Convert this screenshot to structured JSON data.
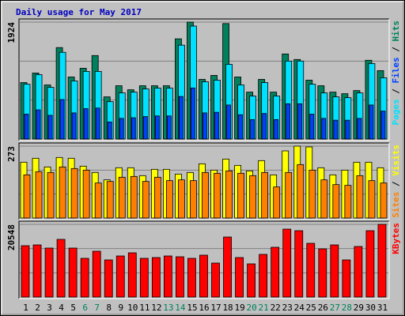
{
  "chart_data": {
    "type": "bar",
    "title": "Daily usage for May 2017",
    "legend_separator": " / ",
    "categories": [
      "1",
      "2",
      "3",
      "4",
      "5",
      "6",
      "7",
      "8",
      "9",
      "10",
      "11",
      "12",
      "13",
      "14",
      "15",
      "16",
      "17",
      "18",
      "19",
      "20",
      "21",
      "22",
      "23",
      "24",
      "25",
      "26",
      "27",
      "28",
      "29",
      "30",
      "31"
    ],
    "category_colors": [
      "#000000",
      "#000000",
      "#000000",
      "#000000",
      "#000000",
      "#00805c",
      "#00805c",
      "#000000",
      "#000000",
      "#000000",
      "#000000",
      "#000000",
      "#00805c",
      "#00805c",
      "#000000",
      "#000000",
      "#000000",
      "#000000",
      "#000000",
      "#00805c",
      "#00805c",
      "#000000",
      "#000000",
      "#000000",
      "#000000",
      "#000000",
      "#00805c",
      "#00805c",
      "#000000",
      "#000000",
      "#000000"
    ],
    "panels": [
      {
        "type": "bar",
        "ylim": [
          0,
          1924
        ],
        "yticks": [
          1924
        ],
        "grid_divisions": 3,
        "series": [
          {
            "name": "Pages",
            "color": "#00e0ff",
            "values": [
              903,
              1060,
              851,
              1427,
              956,
              1113,
              1113,
              615,
              759,
              772,
              825,
              838,
              838,
              1545,
              1859,
              942,
              969,
              1230,
              890,
              707,
              929,
              707,
              1283,
              1283,
              903,
              759,
              694,
              681,
              759,
              1243,
              1008
            ]
          },
          {
            "name": "Files",
            "color": "#0040ff",
            "values": [
              410,
              480,
              390,
              650,
              430,
              500,
              510,
              280,
              340,
              350,
              370,
              380,
              380,
              700,
              840,
              430,
              440,
              560,
              400,
              320,
              420,
              320,
              580,
              580,
              410,
              340,
              310,
              310,
              340,
              560,
              460
            ]
          },
          {
            "name": "Hits",
            "color": "#00805c",
            "values": [
              929,
              1086,
              890,
              1505,
              1021,
              1165,
              1374,
              694,
              877,
              811,
              877,
              877,
              877,
              1649,
              1924,
              982,
              1047,
              1900,
              1021,
              772,
              982,
              772,
              1400,
              1309,
              969,
              877,
              772,
              746,
              798,
              1296,
              1126
            ]
          }
        ]
      },
      {
        "type": "bar",
        "ylim": [
          0,
          273
        ],
        "yticks": [
          273
        ],
        "grid_divisions": 3,
        "series": [
          {
            "name": "Sites",
            "color": "#ff8000",
            "values": [
              164,
              176,
              173,
              194,
              188,
              182,
              133,
              139,
              155,
              158,
              139,
              155,
              142,
              145,
              142,
              173,
              170,
              179,
              170,
              161,
              173,
              118,
              173,
              203,
              182,
              145,
              127,
              124,
              161,
              142,
              133
            ]
          },
          {
            "name": "Visits",
            "color": "#ffff00",
            "values": [
              212,
              227,
              194,
              230,
              227,
              197,
              173,
              145,
              191,
              191,
              161,
              185,
              185,
              167,
              173,
              206,
              182,
              224,
              200,
              179,
              218,
              164,
              255,
              273,
              270,
              191,
              164,
              182,
              212,
              212,
              191
            ]
          }
        ]
      },
      {
        "type": "bar",
        "ylim": [
          0,
          20548
        ],
        "yticks": [
          20548
        ],
        "grid_divisions": 3,
        "series": [
          {
            "name": "KBytes",
            "color": "#ff0000",
            "values": [
              14515,
              14738,
              13845,
              16302,
              13845,
              10942,
              12952,
              10495,
              11612,
              12505,
              10942,
              11165,
              11612,
              11388,
              10942,
              11835,
              9602,
              16971,
              11165,
              9379,
              12058,
              14068,
              19204,
              18757,
              15184,
              13622,
              14738,
              10495,
              14291,
              18757,
              20548
            ]
          }
        ]
      }
    ]
  }
}
